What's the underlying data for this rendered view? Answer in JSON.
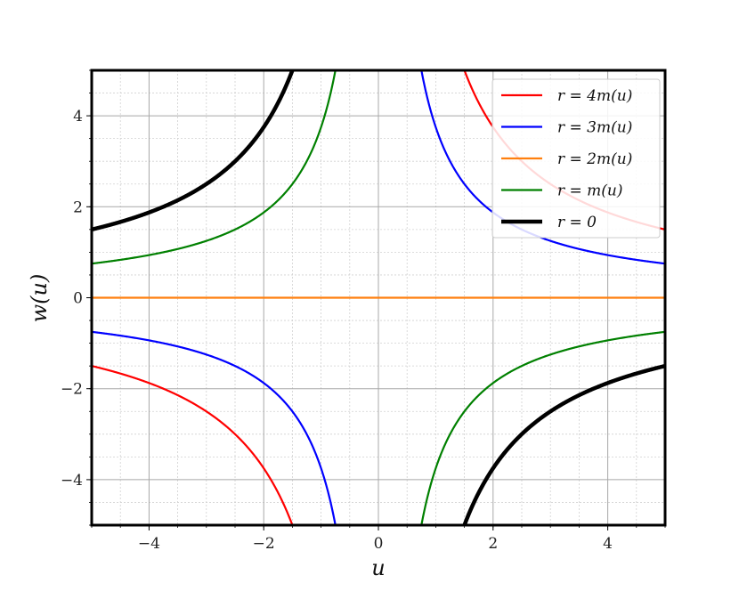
{
  "chart_data": {
    "type": "line",
    "xlabel": "u",
    "ylabel": "w(u)",
    "xlim": [
      -5,
      5
    ],
    "ylim": [
      -5,
      5
    ],
    "xticks": [
      -4,
      -2,
      0,
      2,
      4
    ],
    "yticks": [
      -4,
      -2,
      0,
      2,
      4
    ],
    "xtick_labels": [
      "−4",
      "−2",
      "0",
      "2",
      "4"
    ],
    "ytick_labels": [
      "−4",
      "−2",
      "0",
      "2",
      "4"
    ],
    "grid": "major and minor",
    "legend_position": "top-right",
    "series": [
      {
        "name": "r = 4m(u)",
        "color": "#ff0000",
        "width": 2.2,
        "formula": "w = 7.5/u",
        "k": 7.5
      },
      {
        "name": "r = 3m(u)",
        "color": "#0000ff",
        "width": 2.2,
        "formula": "w = 3.75/u",
        "k": 3.75
      },
      {
        "name": "r = 2m(u)",
        "color": "#ff7f0e",
        "width": 2.2,
        "formula": "w = 0",
        "k": 0
      },
      {
        "name": "r = m(u)",
        "color": "#008000",
        "width": 2.2,
        "formula": "w = -3.75/u",
        "k": -3.75
      },
      {
        "name": "r = 0",
        "color": "#000000",
        "width": 4.5,
        "formula": "w = -7.5/u",
        "k": -7.5
      }
    ]
  }
}
